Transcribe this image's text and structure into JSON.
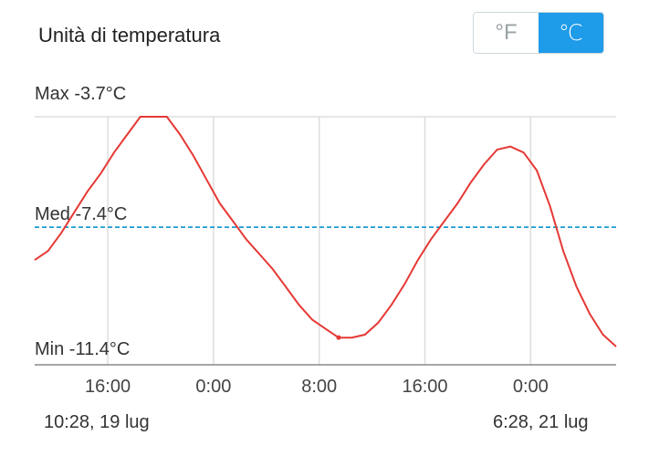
{
  "header": {
    "title": "Unità di temperatura",
    "unit_f": "°F",
    "unit_c": "℃",
    "selected_unit": "C",
    "accent_color": "#1e9be9"
  },
  "chart_data": {
    "type": "line",
    "max_label": "Max -3.7°C",
    "avg_label": "Med -7.4°C",
    "min_label": "Min -11.4°C",
    "max": -3.7,
    "avg": -7.4,
    "min": -11.4,
    "x_ticks": [
      "16:00",
      "0:00",
      "8:00",
      "16:00",
      "0:00"
    ],
    "x_tick_hours": [
      5.53,
      13.53,
      21.53,
      29.53,
      37.53
    ],
    "range_start": "10:28,  19 lug",
    "range_end": "6:28,  21 lug",
    "x_range_hours": [
      0,
      44
    ],
    "series": [
      {
        "color": "#e53935",
        "points": [
          [
            0.0,
            -8.5
          ],
          [
            1.0,
            -8.2
          ],
          [
            2.0,
            -7.6
          ],
          [
            3.0,
            -6.9
          ],
          [
            4.0,
            -6.2
          ],
          [
            5.0,
            -5.6
          ],
          [
            6.0,
            -4.9
          ],
          [
            7.0,
            -4.3
          ],
          [
            8.0,
            -3.7
          ],
          [
            9.0,
            -3.7
          ],
          [
            10.0,
            -3.7
          ],
          [
            11.0,
            -4.3
          ],
          [
            12.0,
            -5.0
          ],
          [
            13.0,
            -5.8
          ],
          [
            14.0,
            -6.6
          ],
          [
            15.0,
            -7.2
          ],
          [
            16.0,
            -7.8
          ],
          [
            17.0,
            -8.3
          ],
          [
            18.0,
            -8.8
          ],
          [
            19.0,
            -9.4
          ],
          [
            20.0,
            -10.0
          ],
          [
            21.0,
            -10.5
          ],
          [
            22.0,
            -10.8
          ],
          [
            23.0,
            -11.1
          ],
          [
            24.0,
            -11.1
          ],
          [
            25.0,
            -11.0
          ],
          [
            26.0,
            -10.6
          ],
          [
            27.0,
            -10.0
          ],
          [
            28.0,
            -9.3
          ],
          [
            29.0,
            -8.5
          ],
          [
            30.0,
            -7.8
          ],
          [
            31.0,
            -7.2
          ],
          [
            32.0,
            -6.6
          ],
          [
            33.0,
            -5.9
          ],
          [
            34.0,
            -5.3
          ],
          [
            35.0,
            -4.8
          ],
          [
            36.0,
            -4.7
          ],
          [
            37.0,
            -4.9
          ],
          [
            38.0,
            -5.5
          ],
          [
            39.0,
            -6.7
          ],
          [
            40.0,
            -8.2
          ],
          [
            41.0,
            -9.4
          ],
          [
            42.0,
            -10.3
          ],
          [
            43.0,
            -11.0
          ],
          [
            44.0,
            -11.4
          ]
        ]
      }
    ]
  }
}
